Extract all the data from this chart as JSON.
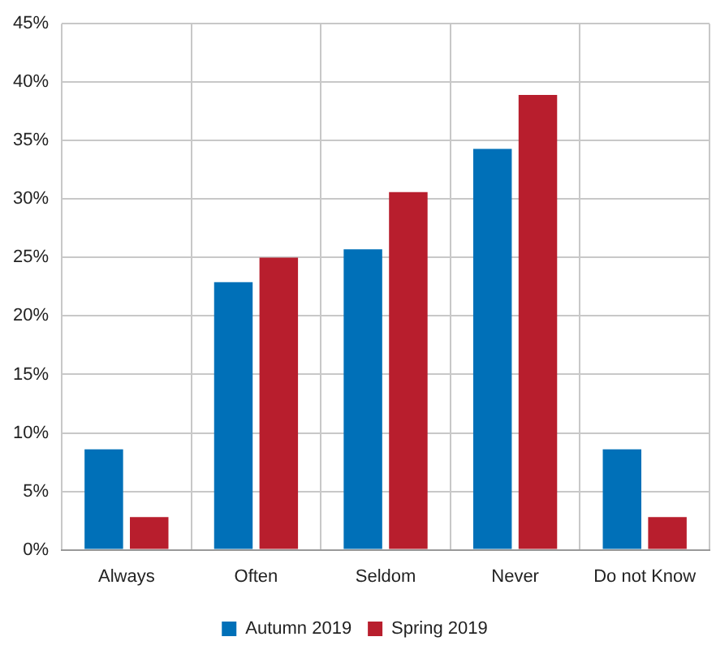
{
  "chart_data": {
    "type": "bar",
    "categories": [
      "Always",
      "Often",
      "Seldom",
      "Never",
      "Do not Know"
    ],
    "series": [
      {
        "name": "Autumn 2019",
        "color": "#0070b8",
        "values": [
          8.6,
          22.9,
          25.7,
          34.3,
          8.6
        ]
      },
      {
        "name": "Spring 2019",
        "color": "#b81e2d",
        "values": [
          2.8,
          25.0,
          30.6,
          38.9,
          2.8
        ]
      }
    ],
    "ylim": [
      0,
      45
    ],
    "yticks": [
      {
        "value": 0,
        "label": "0%"
      },
      {
        "value": 5,
        "label": "5%"
      },
      {
        "value": 10,
        "label": "10%"
      },
      {
        "value": 15,
        "label": "15%"
      },
      {
        "value": 20,
        "label": "20%"
      },
      {
        "value": 25,
        "label": "25%"
      },
      {
        "value": 30,
        "label": "30%"
      },
      {
        "value": 35,
        "label": "35%"
      },
      {
        "value": 40,
        "label": "40%"
      },
      {
        "value": 45,
        "label": "45%"
      }
    ],
    "grid": true,
    "legend": "bottom"
  }
}
